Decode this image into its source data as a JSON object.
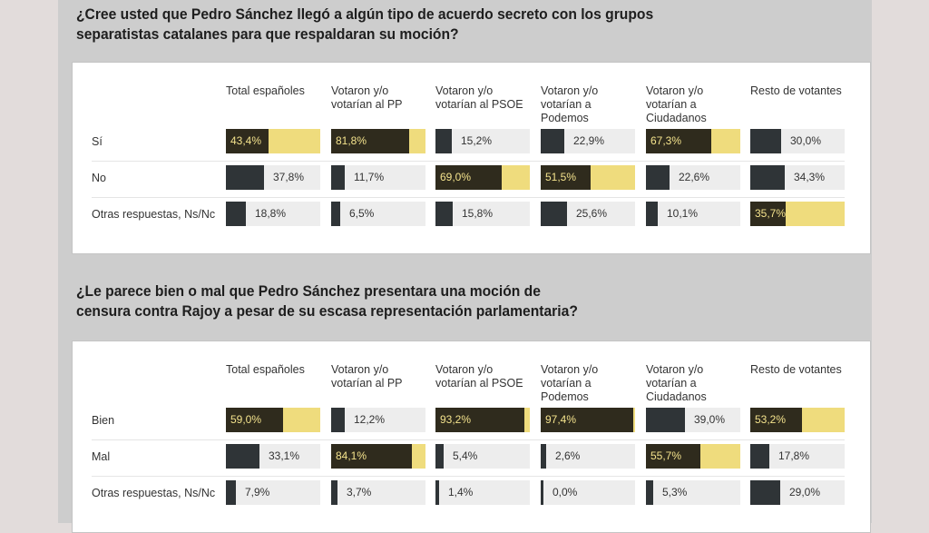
{
  "colors": {
    "dark": "#2f3437",
    "highlight_bar": "#2f2b1d",
    "highlight_fill": "#efdc7d",
    "track": "#ededed",
    "highlight_text": "#f3e28c",
    "text": "#333333"
  },
  "chart_data": [
    {
      "type": "table",
      "title": "¿Cree usted que Pedro Sánchez llegó a algún tipo de acuerdo secreto con los grupos separatistas catalanes para que respaldaran su moción?",
      "columns": [
        "Total españoles",
        "Votaron y/o votarían al PP",
        "Votaron y/o votarían al PSOE",
        "Votaron y/o votarían a Podemos",
        "Votaron y/o votarían a Ciudadanos",
        "Resto de votantes"
      ],
      "rows": [
        {
          "label": "Sí",
          "values": [
            43.4,
            81.8,
            15.2,
            22.9,
            67.3,
            30.0
          ],
          "labels": [
            "43,4%",
            "81,8%",
            "15,2%",
            "22,9%",
            "67,3%",
            "30,0%"
          ],
          "highlight": [
            true,
            true,
            false,
            false,
            true,
            false
          ]
        },
        {
          "label": "No",
          "values": [
            37.8,
            11.7,
            69.0,
            51.5,
            22.6,
            34.3
          ],
          "labels": [
            "37,8%",
            "11,7%",
            "69,0%",
            "51,5%",
            "22,6%",
            "34,3%"
          ],
          "highlight": [
            false,
            false,
            true,
            true,
            false,
            false
          ]
        },
        {
          "label": "Otras respuestas, Ns/Nc",
          "values": [
            18.8,
            6.5,
            15.8,
            25.6,
            10.1,
            35.7
          ],
          "labels": [
            "18,8%",
            "6,5%",
            "15,8%",
            "25,6%",
            "10,1%",
            "35,7%"
          ],
          "highlight": [
            false,
            false,
            false,
            false,
            false,
            true
          ]
        }
      ]
    },
    {
      "type": "table",
      "title": "¿Le parece bien o mal que Pedro Sánchez presentara una moción de censura contra Rajoy a pesar de su escasa representación parlamentaria?",
      "columns": [
        "Total españoles",
        "Votaron y/o votarían al PP",
        "Votaron y/o votarían al PSOE",
        "Votaron y/o votarían a Podemos",
        "Votaron y/o votarían a Ciudadanos",
        "Resto de votantes"
      ],
      "rows": [
        {
          "label": "Bien",
          "values": [
            59.0,
            12.2,
            93.2,
            97.4,
            39.0,
            53.2
          ],
          "labels": [
            "59,0%",
            "12,2%",
            "93,2%",
            "97,4%",
            "39,0%",
            "53,2%"
          ],
          "highlight": [
            true,
            false,
            true,
            true,
            false,
            true
          ]
        },
        {
          "label": "Mal",
          "values": [
            33.1,
            84.1,
            5.4,
            2.6,
            55.7,
            17.8
          ],
          "labels": [
            "33,1%",
            "84,1%",
            "5,4%",
            "2,6%",
            "55,7%",
            "17,8%"
          ],
          "highlight": [
            false,
            true,
            false,
            false,
            true,
            false
          ]
        },
        {
          "label": "Otras respuestas, Ns/Nc",
          "values": [
            7.9,
            3.7,
            1.4,
            0.0,
            5.3,
            29.0
          ],
          "labels": [
            "7,9%",
            "3,7%",
            "1,4%",
            "0,0%",
            "5,3%",
            "29,0%"
          ],
          "highlight": [
            false,
            false,
            false,
            false,
            false,
            false
          ]
        }
      ]
    }
  ],
  "col_head_lines": [
    [
      "Total españoles"
    ],
    [
      "Votaron y/o",
      "votarían al PP"
    ],
    [
      "Votaron y/o",
      "votarían al PSOE"
    ],
    [
      "Votaron y/o",
      "votarían a",
      "Podemos"
    ],
    [
      "Votaron y/o",
      "votarían a",
      "Ciudadanos"
    ],
    [
      "Resto de votantes"
    ]
  ],
  "q1_title_lines": [
    "¿Cree usted que Pedro Sánchez llegó a algún tipo de acuerdo secreto con los grupos",
    "separatistas catalanes para que respaldaran su moción?"
  ],
  "q2_title_lines": [
    "¿Le parece bien o mal que Pedro Sánchez presentara una moción de",
    "censura contra Rajoy a pesar de su escasa representación parlamentaria?"
  ]
}
